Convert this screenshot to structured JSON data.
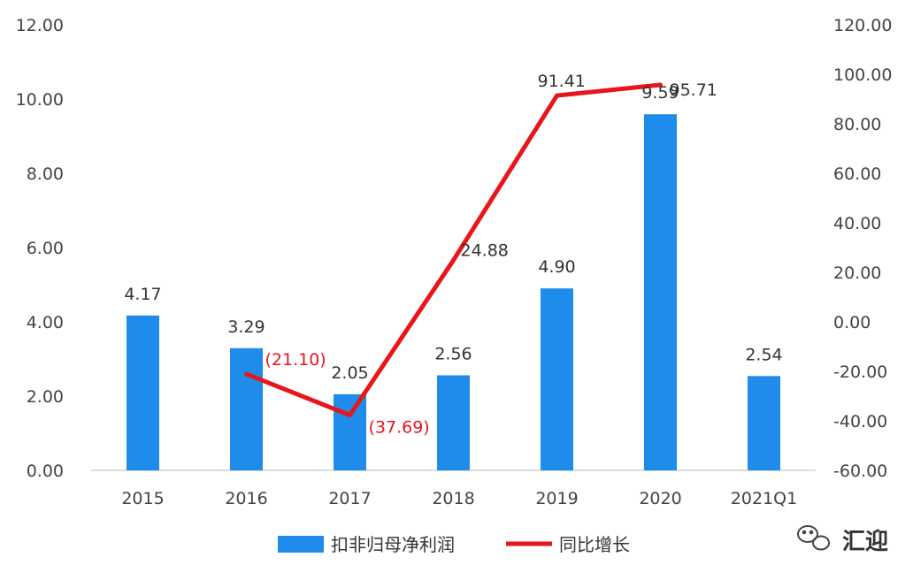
{
  "chart_data": {
    "type": "bar",
    "title": "",
    "categories": [
      "2015",
      "2016",
      "2017",
      "2018",
      "2019",
      "2020",
      "2021Q1"
    ],
    "series": [
      {
        "name": "扣非归母净利润",
        "type": "bar",
        "axis": "left",
        "color": "#1f8ceb",
        "values": [
          4.17,
          3.29,
          2.05,
          2.56,
          4.9,
          9.59,
          2.54
        ],
        "labels": [
          "4.17",
          "3.29",
          "2.05",
          "2.56",
          "4.90",
          "9.59",
          "2.54"
        ]
      },
      {
        "name": "同比增长",
        "type": "line",
        "axis": "right",
        "color": "#e8161b",
        "values": [
          null,
          -21.1,
          -37.69,
          24.88,
          91.41,
          95.71,
          null
        ],
        "labels": [
          null,
          "(21.10)",
          "(37.69)",
          "24.88",
          "91.41",
          "95.71",
          null
        ]
      }
    ],
    "y_left": {
      "min": 0,
      "max": 12,
      "step": 2,
      "ticks": [
        "0.00",
        "2.00",
        "4.00",
        "6.00",
        "8.00",
        "10.00",
        "12.00"
      ]
    },
    "y_right": {
      "min": -60,
      "max": 120,
      "step": 20,
      "ticks": [
        "-60.00",
        "-40.00",
        "-20.00",
        "0.00",
        "20.00",
        "40.00",
        "60.00",
        "80.00",
        "100.00",
        "120.00"
      ]
    },
    "grid": false,
    "legend_position": "bottom"
  },
  "watermark": {
    "text": "汇迎",
    "icon": "wechat-icon"
  }
}
